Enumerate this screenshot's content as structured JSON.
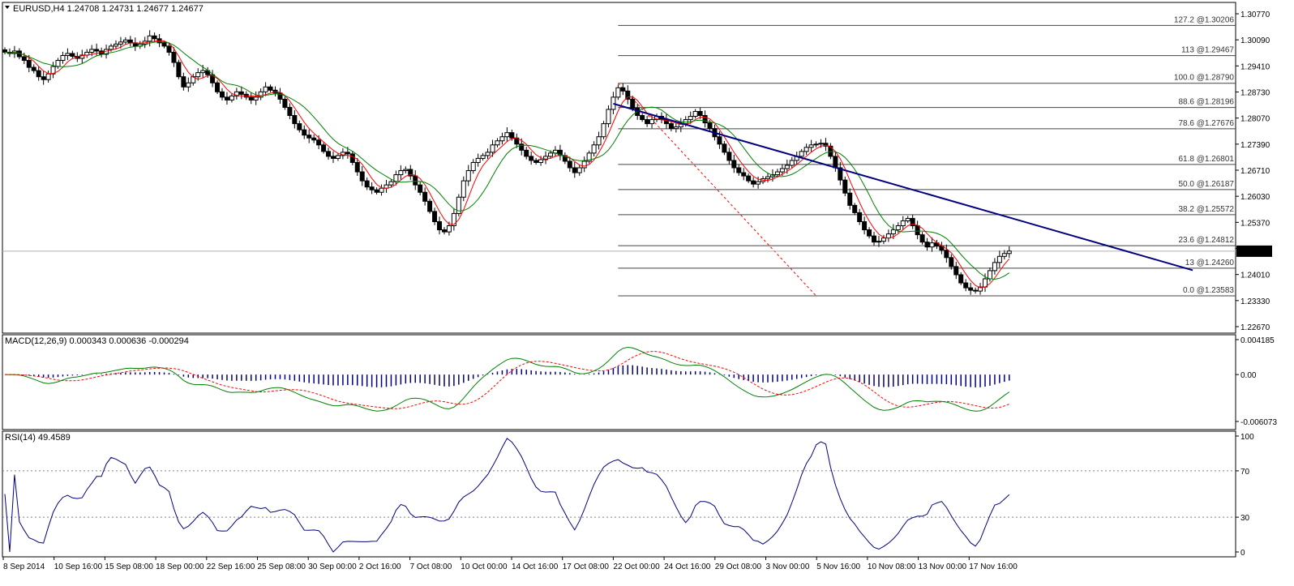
{
  "chart_data": [
    {
      "type": "line",
      "panel": "price",
      "title": "EURUSD,H4",
      "ohlc_label": "1.24708 1.24731 1.24677 1.24677",
      "current_price": "1.24677",
      "y_ticks": [
        "1.30770",
        "1.30090",
        "1.29410",
        "1.28730",
        "1.28070",
        "1.27390",
        "1.26710",
        "1.26030",
        "1.25370",
        "1.24690",
        "1.24010",
        "1.23330",
        "1.22670"
      ],
      "ylim": [
        1.2267,
        1.3077
      ],
      "fib_levels": [
        {
          "label": "127.2 @1.30206",
          "price": 1.30206
        },
        {
          "label": "113 @1.29467",
          "price": 1.29467
        },
        {
          "label": "100.0 @1.28790",
          "price": 1.2879
        },
        {
          "label": "88.6 @1.28196",
          "price": 1.28196
        },
        {
          "label": "78.6 @1.27676",
          "price": 1.27676
        },
        {
          "label": "61.8 @1.26801",
          "price": 1.26801
        },
        {
          "label": "50.0 @1.26187",
          "price": 1.26187
        },
        {
          "label": "38.2 @1.25572",
          "price": 1.25572
        },
        {
          "label": "23.6 @1.24812",
          "price": 1.24812
        },
        {
          "label": "13 @1.24260",
          "price": 1.2426
        },
        {
          "label": "0.0 @1.23583",
          "price": 1.23583
        }
      ],
      "trendline": [
        [
          126,
          1.2829
        ],
        [
          246,
          1.2421
        ]
      ],
      "bars": 204,
      "series": [
        {
          "kind": "close",
          "color": "#000000",
          "values": [
            1.2955,
            1.2952,
            1.2958,
            1.2944,
            1.2935,
            1.2918,
            1.291,
            1.2895,
            1.2888,
            1.2902,
            1.292,
            1.2935,
            1.2947,
            1.2952,
            1.2945,
            1.294,
            1.2948,
            1.2955,
            1.2962,
            1.2958,
            1.295,
            1.2962,
            1.297,
            1.2975,
            1.298,
            1.2985,
            1.2978,
            1.297,
            1.2975,
            1.2982,
            1.2995,
            1.2988,
            1.2978,
            1.297,
            1.2955,
            1.293,
            1.2895,
            1.287,
            1.288,
            1.2895,
            1.2905,
            1.291,
            1.29,
            1.288,
            1.2858,
            1.2845,
            1.2838,
            1.2848,
            1.2858,
            1.2852,
            1.2845,
            1.2838,
            1.2845,
            1.2858,
            1.287,
            1.2862,
            1.2855,
            1.284,
            1.282,
            1.28,
            1.278,
            1.2765,
            1.2752,
            1.2745,
            1.274,
            1.2728,
            1.2712,
            1.27,
            1.2695,
            1.2702,
            1.271,
            1.2706,
            1.2685,
            1.2662,
            1.264,
            1.2625,
            1.2618,
            1.2612,
            1.2622,
            1.263,
            1.2638,
            1.2655,
            1.2665,
            1.2668,
            1.2652,
            1.263,
            1.2612,
            1.259,
            1.2565,
            1.254,
            1.252,
            1.2515,
            1.253,
            1.256,
            1.26,
            1.264,
            1.2665,
            1.2685,
            1.2695,
            1.2702,
            1.271,
            1.2728,
            1.2738,
            1.2748,
            1.2758,
            1.2745,
            1.273,
            1.2715,
            1.27,
            1.269,
            1.2685,
            1.2692,
            1.27,
            1.2708,
            1.2715,
            1.2702,
            1.2688,
            1.2672,
            1.266,
            1.2672,
            1.2688,
            1.2708,
            1.2728,
            1.2748,
            1.278,
            1.2815,
            1.2845,
            1.2868,
            1.286,
            1.284,
            1.2818,
            1.28,
            1.279,
            1.278,
            1.279,
            1.2798,
            1.279,
            1.278,
            1.2768,
            1.2772,
            1.278,
            1.279,
            1.2798,
            1.281,
            1.28,
            1.2782,
            1.2768,
            1.2748,
            1.273,
            1.271,
            1.269,
            1.2672,
            1.266,
            1.2652,
            1.264,
            1.2632,
            1.2638,
            1.2645,
            1.265,
            1.2655,
            1.2662,
            1.267,
            1.2678,
            1.269,
            1.27,
            1.2712,
            1.2722,
            1.2728,
            1.273,
            1.2732,
            1.2725,
            1.27,
            1.2672,
            1.2642,
            1.261,
            1.258,
            1.2562,
            1.254,
            1.252,
            1.2505,
            1.249,
            1.2492,
            1.25,
            1.251,
            1.252,
            1.253,
            1.2542,
            1.2548,
            1.253,
            1.2508,
            1.249,
            1.2478,
            1.2488,
            1.248,
            1.247,
            1.2452,
            1.243,
            1.241,
            1.239,
            1.2378,
            1.2372,
            1.237,
            1.238,
            1.24,
            1.242,
            1.244,
            1.2455,
            1.2462,
            1.2468
          ]
        }
      ]
    },
    {
      "type": "line",
      "panel": "macd",
      "title": "MACD(12,26,9) 0.000343 0.000636 -0.000294",
      "y_ticks": [
        "0.004185",
        "0.00",
        "-0.006073"
      ],
      "ylim": [
        -0.006073,
        0.004185
      ]
    },
    {
      "type": "line",
      "panel": "rsi",
      "title": "RSI(14) 49.4589",
      "y_ticks": [
        "100",
        "70",
        "30",
        "0"
      ],
      "ylim": [
        0,
        100
      ]
    }
  ],
  "x_ticks": [
    "8 Sep 2014",
    "10 Sep 16:00",
    "15 Sep 08:00",
    "18 Sep 00:00",
    "22 Sep 16:00",
    "25 Sep 08:00",
    "30 Sep 00:00",
    "2 Oct 16:00",
    "7 Oct 08:00",
    "10 Oct 00:00",
    "14 Oct 16:00",
    "17 Oct 08:00",
    "22 Oct 00:00",
    "24 Oct 16:00",
    "29 Oct 08:00",
    "3 Nov 00:00",
    "5 Nov 16:00",
    "10 Nov 08:00",
    "13 Nov 00:00",
    "17 Nov 16:00"
  ],
  "colors": {
    "candle": "#000000",
    "ma_fast": "#ff0000",
    "ma_slow": "#008000",
    "trendline": "#000080",
    "macd_hist": "#000080",
    "macd_main": "#008000",
    "macd_signal": "#ff0000",
    "rsi_line": "#000080",
    "fib_lines": "#444444",
    "grid_dotted": "#808080",
    "price_tag_bg": "#000000"
  }
}
